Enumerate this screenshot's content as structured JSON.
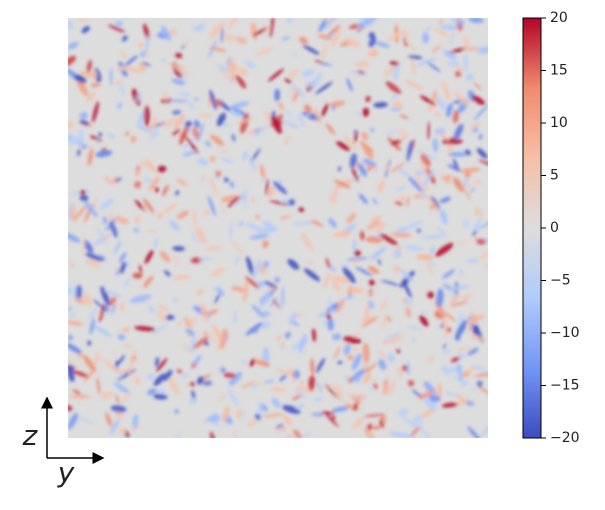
{
  "chart_data": {
    "type": "heatmap",
    "x_label": "y",
    "y_label": "z",
    "clim": [
      -20,
      20
    ],
    "cticks": [
      20,
      15,
      10,
      5,
      0,
      {
        "value": -5,
        "label": "−5"
      },
      {
        "value": -10,
        "label": "−10"
      },
      {
        "value": -15,
        "label": "−15"
      },
      {
        "value": -20,
        "label": "−20"
      }
    ],
    "colormap": [
      "#3b4cc0",
      "#7396f5",
      "#b0cbfc",
      "#dddddd",
      "#f6bfa6",
      "#f08b6e",
      "#b40426"
    ]
  }
}
